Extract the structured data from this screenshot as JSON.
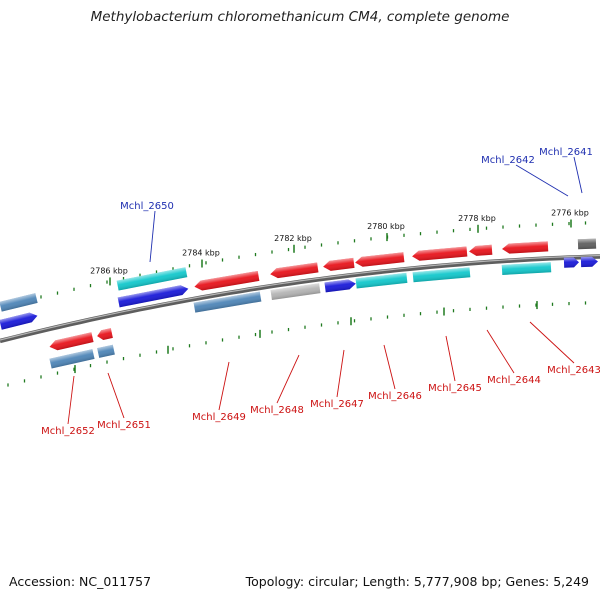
{
  "title": "Methylobacterium chloromethanicum CM4, complete genome",
  "accession": "Accession: NC_011757",
  "summary": "Topology: circular; Length: 5,777,908 bp; Genes: 5,249",
  "colors": {
    "backbone": "#7a7a7a",
    "tick": "#1f7a1f",
    "label_top": "#1f2fb0",
    "label_bottom": "#cc1111",
    "red": "#e8141c",
    "cyan": "#13c8cc",
    "blue": "#1a1ad9",
    "steel": "#4f86b8",
    "gray": "#b4b4b4",
    "dark": "#606060"
  },
  "ticks": [
    {
      "label": "2786 kbp"
    },
    {
      "label": "2784 kbp"
    },
    {
      "label": "2782 kbp"
    },
    {
      "label": "2780 kbp"
    },
    {
      "label": "2778 kbp"
    },
    {
      "label": "2776 kbp"
    }
  ],
  "genes": [
    {
      "id": "Mchl_2641",
      "color": "dark",
      "strand": "+",
      "row": 1
    },
    {
      "id": "Mchl_2641b",
      "color": "blue",
      "strand": "+",
      "row": 0
    },
    {
      "id": "Mchl_2642",
      "color": "blue",
      "strand": "+",
      "row": 0
    },
    {
      "id": "Mchl_2643",
      "color": "red",
      "strand": "-",
      "row": 0
    },
    {
      "id": "Mchl_2643b",
      "color": "cyan",
      "strand": "+",
      "row": 1
    },
    {
      "id": "Mchl_2644",
      "color": "red",
      "strand": "-",
      "row": 0
    },
    {
      "id": "Mchl_2645",
      "color": "red",
      "strand": "-",
      "row": 0
    },
    {
      "id": "Mchl_2645b",
      "color": "cyan",
      "strand": "+",
      "row": 1
    },
    {
      "id": "Mchl_2646",
      "color": "red",
      "strand": "-",
      "row": 0
    },
    {
      "id": "Mchl_2646b",
      "color": "cyan",
      "strand": "+",
      "row": 1
    },
    {
      "id": "Mchl_2647",
      "color": "red",
      "strand": "-",
      "row": 0
    },
    {
      "id": "Mchl_2647b",
      "color": "blue",
      "strand": "+",
      "row": 1
    },
    {
      "id": "Mchl_2648",
      "color": "red",
      "strand": "-",
      "row": 0
    },
    {
      "id": "Mchl_2648b",
      "color": "gray",
      "strand": "+",
      "row": 1
    },
    {
      "id": "Mchl_2649",
      "color": "red",
      "strand": "-",
      "row": 0
    },
    {
      "id": "Mchl_2649b",
      "color": "steel",
      "strand": "+",
      "row": 1
    },
    {
      "id": "Mchl_2650",
      "color": "cyan",
      "strand": "+",
      "row": 0
    },
    {
      "id": "Mchl_2650b",
      "color": "blue",
      "strand": "+",
      "row": 1
    },
    {
      "id": "Mchl_2651",
      "color": "red",
      "strand": "-",
      "row": 0
    },
    {
      "id": "Mchl_2651b",
      "color": "steel",
      "strand": "+",
      "row": 1
    },
    {
      "id": "Mchl_2652",
      "color": "red",
      "strand": "-",
      "row": 0
    },
    {
      "id": "Mchl_2652b",
      "color": "steel",
      "strand": "+",
      "row": 1
    },
    {
      "id": "left-steel",
      "color": "steel",
      "strand": "+",
      "row": 0
    },
    {
      "id": "left-blue",
      "color": "blue",
      "strand": "+",
      "row": 1
    }
  ],
  "labels_top": [
    {
      "text": "Mchl_2641"
    },
    {
      "text": "Mchl_2642"
    },
    {
      "text": "Mchl_2650"
    }
  ],
  "labels_bottom": [
    {
      "text": "Mchl_2643"
    },
    {
      "text": "Mchl_2644"
    },
    {
      "text": "Mchl_2645"
    },
    {
      "text": "Mchl_2646"
    },
    {
      "text": "Mchl_2647"
    },
    {
      "text": "Mchl_2648"
    },
    {
      "text": "Mchl_2649"
    },
    {
      "text": "Mchl_2651"
    },
    {
      "text": "Mchl_2652"
    }
  ]
}
